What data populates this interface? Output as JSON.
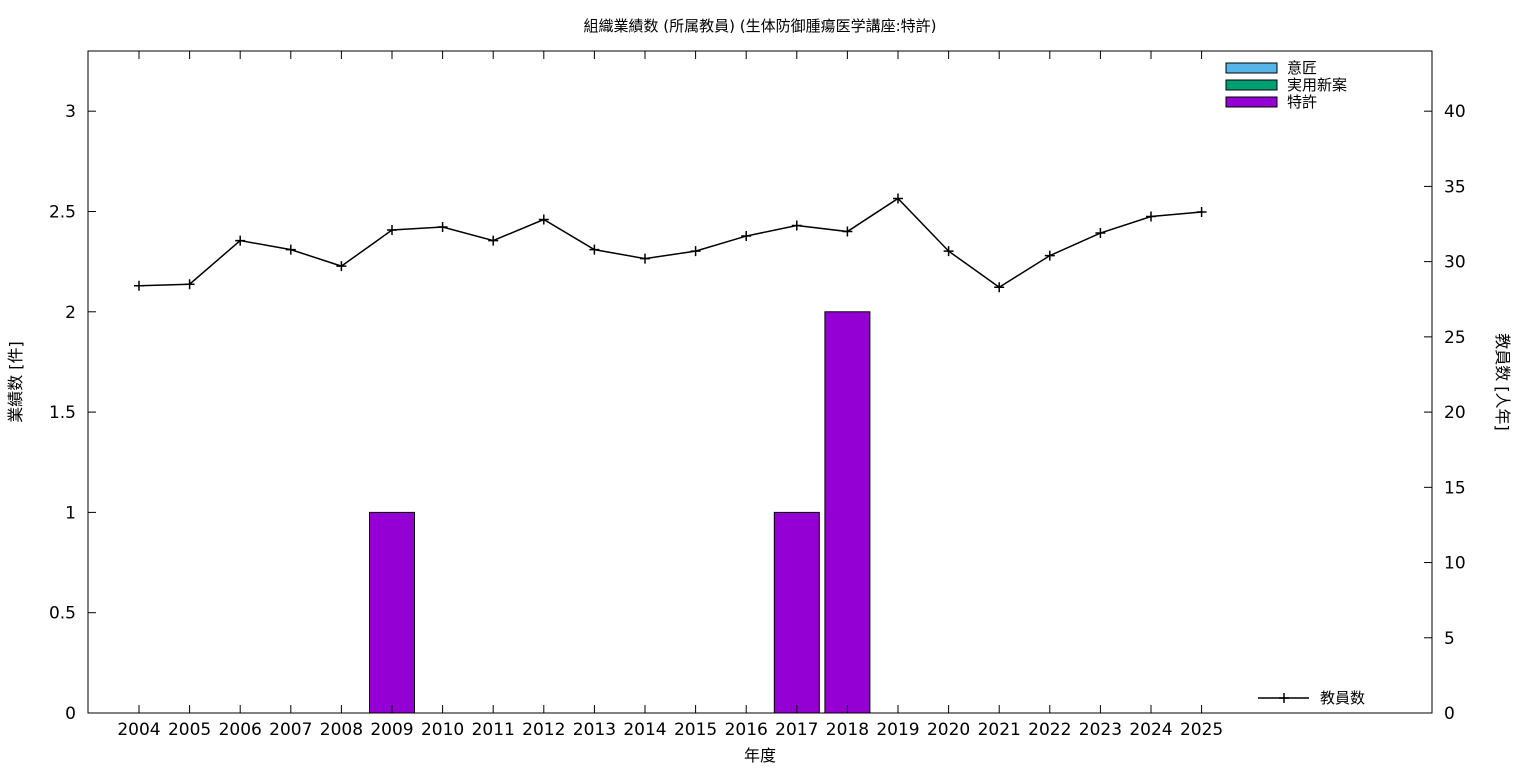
{
  "chart_data": {
    "type": "bar",
    "title": "組織業績数 (所属教員) (生体防御腫瘍医学講座:特許)",
    "xlabel": "年度",
    "ylabel": "業績数 [件]",
    "y2label": "教員数 [人年]",
    "categories": [
      "2004",
      "2005",
      "2006",
      "2007",
      "2008",
      "2009",
      "2010",
      "2011",
      "2012",
      "2013",
      "2014",
      "2015",
      "2016",
      "2017",
      "2018",
      "2019",
      "2020",
      "2021",
      "2022",
      "2023",
      "2024",
      "2025"
    ],
    "ylim": [
      0,
      3.3
    ],
    "yticks": [
      "0",
      "0.5",
      "1",
      "1.5",
      "2",
      "2.5",
      "3"
    ],
    "y2lim": [
      0,
      44
    ],
    "y2ticks": [
      "0",
      "5",
      "10",
      "15",
      "20",
      "25",
      "30",
      "35",
      "40"
    ],
    "series": [
      {
        "name": "意匠",
        "color": "#56b4e9",
        "values": [
          0,
          0,
          0,
          0,
          0,
          0,
          0,
          0,
          0,
          0,
          0,
          0,
          0,
          0,
          0,
          0,
          0,
          0,
          0,
          0,
          0,
          0
        ]
      },
      {
        "name": "実用新案",
        "color": "#009e73",
        "values": [
          0,
          0,
          0,
          0,
          0,
          0,
          0,
          0,
          0,
          0,
          0,
          0,
          0,
          0,
          0,
          0,
          0,
          0,
          0,
          0,
          0,
          0
        ]
      },
      {
        "name": "特許",
        "color": "#9400d3",
        "values": [
          0,
          0,
          0,
          0,
          0,
          1,
          0,
          0,
          0,
          0,
          0,
          0,
          0,
          1,
          2,
          0,
          0,
          0,
          0,
          0,
          0,
          0
        ]
      }
    ],
    "line_series": {
      "name": "教員数",
      "color": "#000000",
      "axis": "right",
      "values": [
        28.4,
        28.5,
        31.4,
        30.8,
        29.7,
        32.1,
        32.3,
        31.4,
        32.8,
        30.8,
        30.2,
        30.7,
        31.7,
        32.4,
        32.0,
        34.2,
        30.7,
        28.3,
        30.4,
        31.9,
        33.0,
        33.3
      ]
    },
    "legend_position": "top-right",
    "line_legend_position": "bottom-right",
    "grid": false
  }
}
